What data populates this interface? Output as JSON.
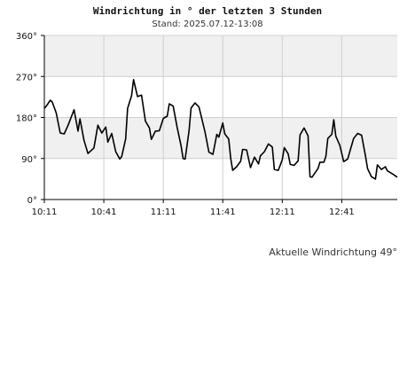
{
  "chart_data": {
    "type": "line",
    "title": "Windrichtung in ° der letzten 3 Stunden",
    "subtitle": "Stand: 2025.07.12-13:08",
    "footer": "Aktuelle Windrichtung 49°",
    "ylim": [
      0,
      360
    ],
    "ytick_values": [
      0,
      90,
      180,
      270,
      360
    ],
    "ytick_labels": [
      "0°",
      "90°",
      "180°",
      "270°",
      "360°"
    ],
    "xlim_minutes": [
      0,
      178
    ],
    "xtick_positions": [
      0,
      30,
      60,
      90,
      120,
      150
    ],
    "xtick_labels": [
      "10:11",
      "10:41",
      "11:11",
      "11:41",
      "12:11",
      "12:41"
    ],
    "band_fill": "#f0f0f0",
    "line_color": "#000000",
    "grid": true,
    "series": [
      {
        "name": "",
        "values": [
          [
            0,
            200
          ],
          [
            1,
            205
          ],
          [
            3,
            218
          ],
          [
            4,
            214
          ],
          [
            6,
            190
          ],
          [
            8,
            146
          ],
          [
            10,
            144
          ],
          [
            12,
            163
          ],
          [
            15,
            197
          ],
          [
            17,
            150
          ],
          [
            18,
            177
          ],
          [
            20,
            130
          ],
          [
            22,
            101
          ],
          [
            25,
            113
          ],
          [
            27,
            163
          ],
          [
            29,
            146
          ],
          [
            31,
            159
          ],
          [
            32,
            126
          ],
          [
            34,
            145
          ],
          [
            36,
            105
          ],
          [
            38,
            89
          ],
          [
            39,
            94
          ],
          [
            41,
            133
          ],
          [
            42,
            200
          ],
          [
            44,
            228
          ],
          [
            45,
            263
          ],
          [
            47,
            226
          ],
          [
            49,
            229
          ],
          [
            51,
            172
          ],
          [
            53,
            157
          ],
          [
            54,
            132
          ],
          [
            56,
            150
          ],
          [
            58,
            151
          ],
          [
            60,
            178
          ],
          [
            62,
            183
          ],
          [
            63,
            210
          ],
          [
            65,
            205
          ],
          [
            67,
            158
          ],
          [
            69,
            117
          ],
          [
            70,
            90
          ],
          [
            71,
            89
          ],
          [
            73,
            151
          ],
          [
            74,
            201
          ],
          [
            76,
            212
          ],
          [
            78,
            203
          ],
          [
            81,
            149
          ],
          [
            83,
            104
          ],
          [
            85,
            99
          ],
          [
            87,
            143
          ],
          [
            88,
            137
          ],
          [
            90,
            168
          ],
          [
            91,
            144
          ],
          [
            93,
            133
          ],
          [
            94,
            90
          ],
          [
            95,
            64
          ],
          [
            97,
            72
          ],
          [
            99,
            84
          ],
          [
            100,
            110
          ],
          [
            102,
            109
          ],
          [
            104,
            70
          ],
          [
            106,
            93
          ],
          [
            108,
            78
          ],
          [
            109,
            96
          ],
          [
            111,
            105
          ],
          [
            113,
            122
          ],
          [
            115,
            115
          ],
          [
            116,
            66
          ],
          [
            118,
            64
          ],
          [
            120,
            87
          ],
          [
            121,
            114
          ],
          [
            123,
            100
          ],
          [
            124,
            77
          ],
          [
            126,
            75
          ],
          [
            128,
            85
          ],
          [
            129,
            142
          ],
          [
            131,
            157
          ],
          [
            133,
            140
          ],
          [
            134,
            50
          ],
          [
            135,
            49
          ],
          [
            138,
            68
          ],
          [
            139,
            82
          ],
          [
            141,
            82
          ],
          [
            142,
            95
          ],
          [
            143,
            134
          ],
          [
            145,
            143
          ],
          [
            146,
            175
          ],
          [
            147,
            139
          ],
          [
            149,
            119
          ],
          [
            151,
            83
          ],
          [
            153,
            89
          ],
          [
            154,
            104
          ],
          [
            156,
            134
          ],
          [
            158,
            145
          ],
          [
            160,
            141
          ],
          [
            162,
            95
          ],
          [
            163,
            68
          ],
          [
            165,
            50
          ],
          [
            167,
            45
          ],
          [
            168,
            76
          ],
          [
            170,
            66
          ],
          [
            172,
            72
          ],
          [
            173,
            63
          ],
          [
            176,
            55
          ],
          [
            178,
            49
          ]
        ]
      }
    ]
  }
}
